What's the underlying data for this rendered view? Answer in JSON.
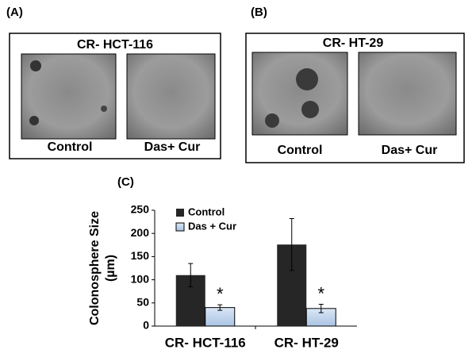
{
  "panels": [
    {
      "label": "(A)",
      "title": "CR- HCT-116",
      "captions": [
        "Control",
        "Das+ Cur"
      ]
    },
    {
      "label": "(B)",
      "title": "CR- HT-29",
      "captions": [
        "Control",
        "Das+ Cur"
      ]
    }
  ],
  "chart_data": {
    "type": "bar",
    "panel_label": "(C)",
    "ylabel": [
      "Colonosphere  Size",
      "(µm)"
    ],
    "categories": [
      "CR- HCT-116",
      "CR- HT-29"
    ],
    "series": [
      {
        "name": "Control",
        "color": "#262626",
        "values": [
          110,
          176
        ],
        "errors": [
          25,
          56
        ]
      },
      {
        "name": "Das + Cur",
        "color": "#c5d9f1",
        "values": [
          40,
          38
        ],
        "errors": [
          6,
          9
        ]
      }
    ],
    "annotations": [
      "*",
      "*"
    ],
    "ylim": [
      0,
      250
    ],
    "yticks": [
      0,
      50,
      100,
      150,
      200,
      250
    ]
  }
}
